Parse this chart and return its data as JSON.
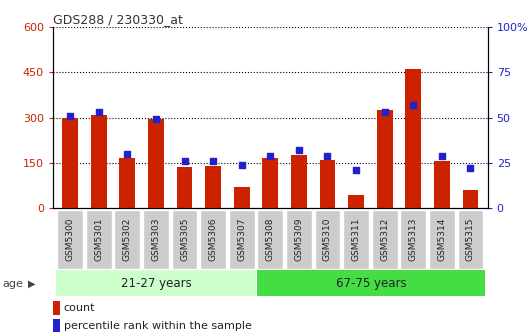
{
  "title": "GDS288 / 230330_at",
  "categories": [
    "GSM5300",
    "GSM5301",
    "GSM5302",
    "GSM5303",
    "GSM5305",
    "GSM5306",
    "GSM5307",
    "GSM5308",
    "GSM5309",
    "GSM5310",
    "GSM5311",
    "GSM5312",
    "GSM5313",
    "GSM5314",
    "GSM5315"
  ],
  "counts": [
    300,
    310,
    165,
    295,
    138,
    140,
    70,
    168,
    175,
    160,
    45,
    325,
    460,
    158,
    60
  ],
  "percentiles": [
    51,
    53,
    30,
    49,
    26,
    26,
    24,
    29,
    32,
    29,
    21,
    53,
    57,
    29,
    22
  ],
  "group1_label": "21-27 years",
  "group2_label": "67-75 years",
  "group1_count": 7,
  "group2_count": 8,
  "left_ylim": [
    0,
    600
  ],
  "right_ylim": [
    0,
    100
  ],
  "left_yticks": [
    0,
    150,
    300,
    450,
    600
  ],
  "right_yticks": [
    0,
    25,
    50,
    75,
    100
  ],
  "bar_color": "#cc2200",
  "dot_color": "#2222cc",
  "group1_bg": "#ccffcc",
  "group2_bg": "#44dd44",
  "xtick_bg": "#cccccc",
  "left_tick_color": "#cc2200",
  "right_tick_color": "#2222cc",
  "legend_count_label": "count",
  "legend_pct_label": "percentile rank within the sample",
  "bar_width": 0.55
}
